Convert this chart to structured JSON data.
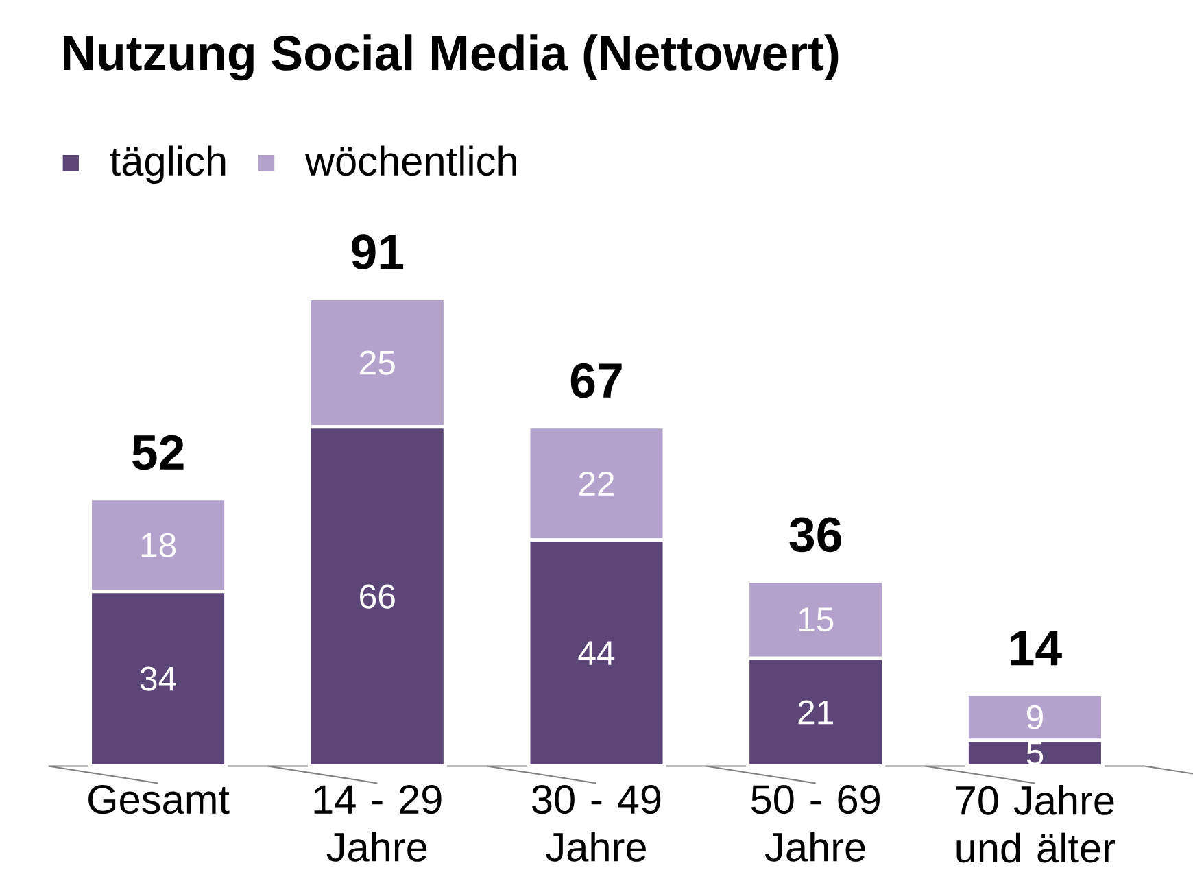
{
  "chart_data": {
    "type": "bar",
    "title": "Nutzung Social Media (Nettowert)",
    "stacked": true,
    "data_labels": true,
    "legend": "top left",
    "categories": [
      "Gesamt",
      "14 - 29 Jahre",
      "30 - 49 Jahre",
      "50 - 69 Jahre",
      "70 Jahre und älter"
    ],
    "series": [
      {
        "name": "täglich",
        "color": "#5c4677",
        "values": [
          34,
          66,
          44,
          21,
          5
        ]
      },
      {
        "name": "wöchentlich",
        "color": "#b3a2cb",
        "values": [
          18,
          25,
          22,
          15,
          9
        ]
      }
    ],
    "totals": [
      "52",
      "91",
      "67",
      "36",
      "14"
    ]
  }
}
